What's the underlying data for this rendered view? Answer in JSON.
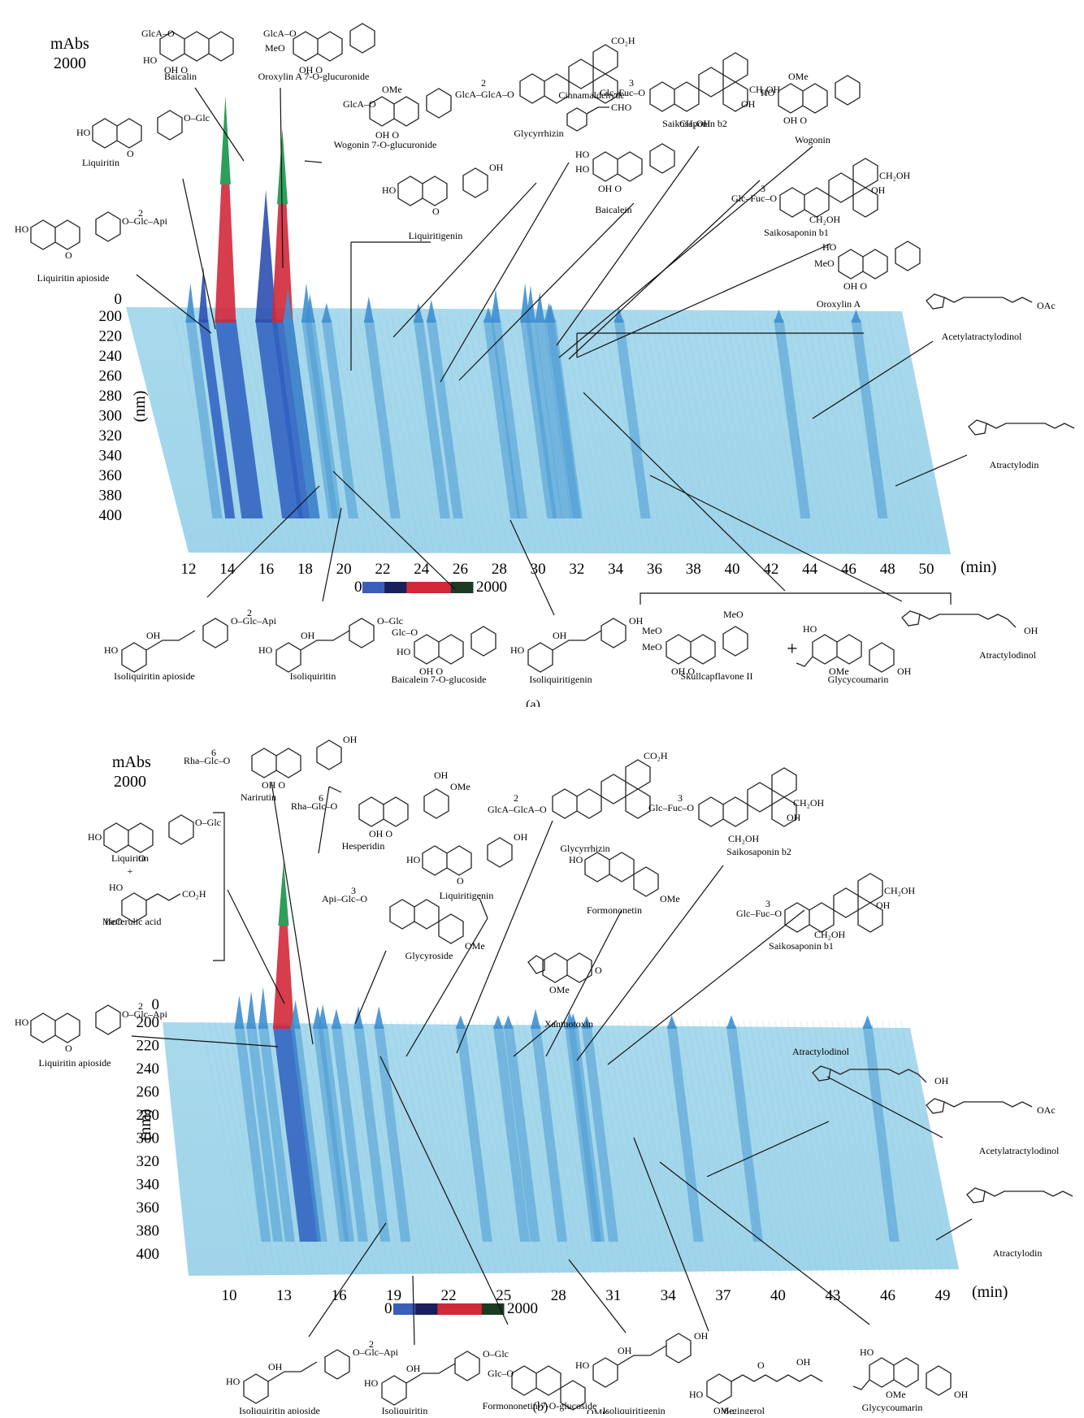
{
  "panel_a": {
    "panel_label": "(a)",
    "absorbance_label": "mAbs",
    "absorbance_max": "2000",
    "colorbar": {
      "min": "0",
      "max": "2000",
      "colors": [
        "#3a5fb8",
        "#1b1f5e",
        "#d1283a",
        "#d1283a",
        "#1d3a22"
      ]
    },
    "time_unit": "(min)",
    "wavelength_unit": "(nm)",
    "wavelength_ticks": [
      "0",
      "200",
      "220",
      "240",
      "260",
      "280",
      "300",
      "320",
      "340",
      "360",
      "380",
      "400"
    ],
    "time_ticks": [
      "12",
      "14",
      "16",
      "18",
      "20",
      "22",
      "24",
      "26",
      "28",
      "30",
      "32",
      "34",
      "36",
      "38",
      "40",
      "42",
      "44",
      "46",
      "48",
      "50"
    ],
    "compounds_top": [
      "Baicalin",
      "Oroxylin A 7-O-glucuronide",
      "Wogonin 7-O-glucuronide",
      "Liquiritin",
      "Liquiritin apioside",
      "Glycyrrhizin",
      "Cinnamaldehyde",
      "Liquiritigenin",
      "Baicalein",
      "Saikosaponin b2",
      "Wogonin",
      "Saikosaponin b1",
      "Oroxylin A",
      "Acetylatractylodinol",
      "Atractylodin"
    ],
    "compounds_bottom": [
      "Isoliquiritin apioside",
      "Isoliquiritin",
      "Baicalein 7-O-glucoside",
      "Isoliquiritigenin",
      "Skullcapflavone II",
      "Glycycoumarin",
      "Atractylodinol"
    ]
  },
  "panel_b": {
    "panel_label": "(b)",
    "absorbance_label": "mAbs",
    "absorbance_max": "2000",
    "colorbar": {
      "min": "0",
      "max": "2000",
      "colors": [
        "#3a5fb8",
        "#1b1f5e",
        "#d1283a",
        "#d1283a",
        "#1d3a22"
      ]
    },
    "time_unit": "(min)",
    "wavelength_unit": "(nm)",
    "wavelength_ticks": [
      "0",
      "200",
      "220",
      "240",
      "260",
      "280",
      "300",
      "320",
      "340",
      "360",
      "380",
      "400"
    ],
    "time_ticks": [
      "10",
      "13",
      "16",
      "19",
      "22",
      "25",
      "28",
      "31",
      "34",
      "37",
      "40",
      "43",
      "46",
      "49"
    ],
    "compounds_top": [
      "Narirutin",
      "Hesperidin",
      "Liquiritin",
      "+",
      "Isoferulic acid",
      "Liquiritin apioside",
      "Glycyroside",
      "Liquiritigenin",
      "Glycyrrhizin",
      "Formononetin",
      "Xanthotoxin",
      "Saikosaponin b2",
      "Saikosaponin b1",
      "Atractylodinol",
      "Acetylatractylodinol",
      "Atractylodin"
    ],
    "compounds_bottom": [
      "Isoliquiritin apioside",
      "Isoliquiritin",
      "Formononetin-7-O-glucoside",
      "Isoliquiritigenin",
      "6-gingerol",
      "Glycycoumarin"
    ]
  },
  "chart_data": [
    {
      "type": "area",
      "title": "",
      "xlabel": "(min)",
      "ylabel": "(nm)",
      "zlabel": "mAbs",
      "xlim": [
        11,
        51
      ],
      "ylim": [
        200,
        400
      ],
      "zlim": [
        0,
        2000
      ],
      "peaks": [
        {
          "name": "Liquiritin apioside",
          "time": 12.3,
          "height": 300
        },
        {
          "name": "Liquiritin",
          "time": 13.0,
          "height": 450
        },
        {
          "name": "Baicalin",
          "time": 14.2,
          "height": 2000
        },
        {
          "name": "Oroxylin A 7-O-glucuronide",
          "time": 16.4,
          "height": 1150
        },
        {
          "name": "Wogonin 7-O-glucuronide",
          "time": 17.3,
          "height": 1700
        },
        {
          "name": "Isoliquiritin apioside",
          "time": 17.6,
          "height": 250
        },
        {
          "name": "Isoliquiritin",
          "time": 18.8,
          "height": 200
        },
        {
          "name": "Baicalein 7-O-glucoside",
          "time": 18.6,
          "height": 300
        },
        {
          "name": "Liquiritigenin",
          "time": 19.7,
          "height": 120
        },
        {
          "name": "Cinnamaldehyde",
          "time": 22.0,
          "height": 180
        },
        {
          "name": "Glycyrrhizin",
          "time": 24.7,
          "height": 120
        },
        {
          "name": "Baicalein",
          "time": 25.4,
          "height": 150
        },
        {
          "name": "Isoliquiritigenin",
          "time": 28.5,
          "height": 80
        },
        {
          "name": "Saikosaponin b2",
          "time": 28.9,
          "height": 250
        },
        {
          "name": "Wogonin",
          "time": 30.5,
          "height": 300
        },
        {
          "name": "Saikosaponin b1",
          "time": 30.8,
          "height": 280
        },
        {
          "name": "Oroxylin A",
          "time": 31.3,
          "height": 220
        },
        {
          "name": "Skullcapflavone II",
          "time": 31.8,
          "height": 120
        },
        {
          "name": "Glycycoumarin",
          "time": 31.9,
          "height": 110
        },
        {
          "name": "Atractylodinol",
          "time": 35.6,
          "height": 80
        },
        {
          "name": "Acetylatractylodinol",
          "time": 44.3,
          "height": 60
        },
        {
          "name": "Atractylodin",
          "time": 48.5,
          "height": 60
        }
      ]
    },
    {
      "type": "area",
      "title": "",
      "xlabel": "(min)",
      "ylabel": "(nm)",
      "zlabel": "mAbs",
      "xlim": [
        9,
        51
      ],
      "ylim": [
        200,
        400
      ],
      "zlim": [
        0,
        2000
      ],
      "peaks": [
        {
          "name": "Liquiritin apioside",
          "time": 11.6,
          "height": 300
        },
        {
          "name": "Liquiritin + Isoferulic acid",
          "time": 12.3,
          "height": 350
        },
        {
          "name": "Narirutin",
          "time": 13.0,
          "height": 400
        },
        {
          "name": "Hesperidin",
          "time": 14.2,
          "height": 1800
        },
        {
          "name": "Glycyroside",
          "time": 14.9,
          "height": 250
        },
        {
          "name": "Isoliquiritin apioside",
          "time": 16.5,
          "height": 200
        },
        {
          "name": "Formononetin-7-O-glucoside",
          "time": 16.2,
          "height": 180
        },
        {
          "name": "Liquiritigenin",
          "time": 17.3,
          "height": 150
        },
        {
          "name": "Isoliquiritin",
          "time": 18.6,
          "height": 180
        },
        {
          "name": "Glycyrrhizin",
          "time": 19.8,
          "height": 180
        },
        {
          "name": "Xanthotoxin",
          "time": 24.6,
          "height": 80
        },
        {
          "name": "Formononetin",
          "time": 26.8,
          "height": 80
        },
        {
          "name": "Isoliquiritigenin",
          "time": 27.4,
          "height": 80
        },
        {
          "name": "Saikosaponin b2",
          "time": 29.0,
          "height": 150
        },
        {
          "name": "Saikosaponin b1",
          "time": 31.0,
          "height": 120
        },
        {
          "name": "Glycycoumarin",
          "time": 31.2,
          "height": 100
        },
        {
          "name": "6-gingerol",
          "time": 32.0,
          "height": 70
        },
        {
          "name": "Atractylodinol",
          "time": 37.0,
          "height": 80
        },
        {
          "name": "Acetylatractylodinol",
          "time": 40.5,
          "height": 80
        },
        {
          "name": "Atractylodin",
          "time": 48.5,
          "height": 80
        }
      ]
    }
  ]
}
